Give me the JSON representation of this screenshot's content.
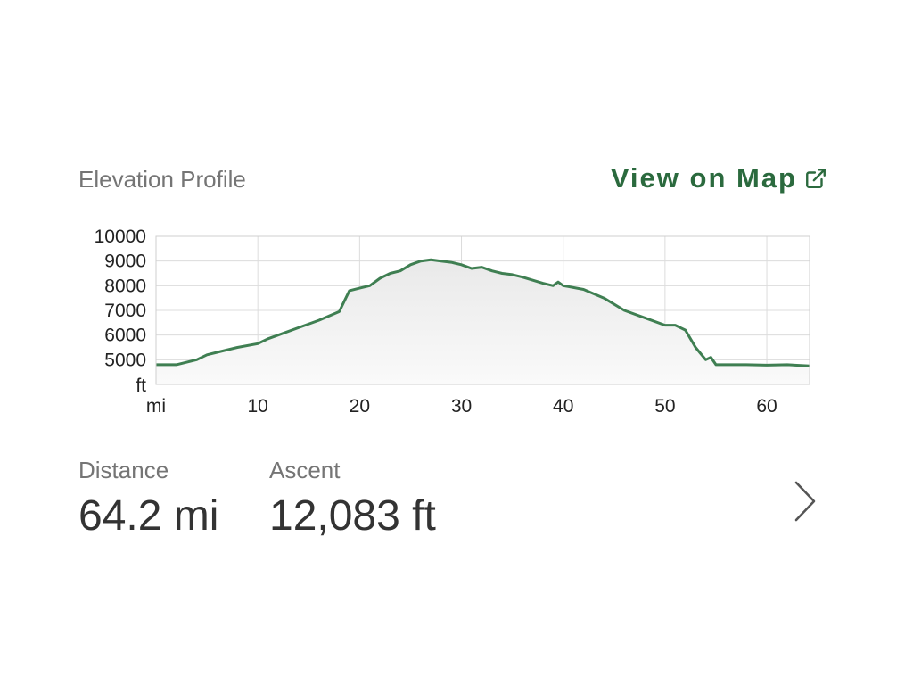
{
  "header": {
    "title": "Elevation Profile",
    "map_link_label": "View on Map",
    "map_link_icon": "external-link-icon"
  },
  "colors": {
    "accent": "#2b6a3e",
    "line": "#3f7f52",
    "muted_text": "#757575",
    "value_text": "#333333",
    "grid": "#dcdcdc"
  },
  "chart_data": {
    "type": "area",
    "title": "",
    "x_unit_label": "mi",
    "y_unit_label": "ft",
    "x_ticks": [
      "10",
      "20",
      "30",
      "40",
      "50",
      "60"
    ],
    "y_ticks": [
      "10000",
      "9000",
      "8000",
      "7000",
      "6000",
      "5000"
    ],
    "xlim": [
      0,
      64.2
    ],
    "ylim": [
      4000,
      10000
    ],
    "grid": true,
    "legend": "none",
    "series": [
      {
        "x": [
          0,
          2,
          4,
          5,
          6,
          8,
          10,
          11,
          12,
          14,
          16,
          18,
          19,
          20,
          21,
          22,
          23,
          24,
          25,
          26,
          27,
          28,
          29,
          30,
          31,
          32,
          33,
          34,
          35,
          36,
          38,
          39,
          39.5,
          40,
          42,
          44,
          46,
          48,
          50,
          51,
          52,
          53,
          54,
          54.5,
          55,
          58,
          60,
          62,
          64.2
        ],
        "y": [
          4800,
          4800,
          5000,
          5200,
          5300,
          5500,
          5650,
          5850,
          6000,
          6300,
          6600,
          6950,
          7800,
          7900,
          8000,
          8300,
          8500,
          8600,
          8850,
          9000,
          9050,
          9000,
          8950,
          8850,
          8700,
          8750,
          8600,
          8500,
          8450,
          8350,
          8100,
          8000,
          8150,
          8000,
          7850,
          7500,
          7000,
          6700,
          6400,
          6400,
          6200,
          5500,
          5000,
          5100,
          4800,
          4800,
          4780,
          4800,
          4750
        ]
      }
    ]
  },
  "stats": {
    "distance": {
      "label": "Distance",
      "value": "64.2 mi"
    },
    "ascent": {
      "label": "Ascent",
      "value": "12,083 ft"
    }
  },
  "chevron_icon": "chevron-right-icon"
}
